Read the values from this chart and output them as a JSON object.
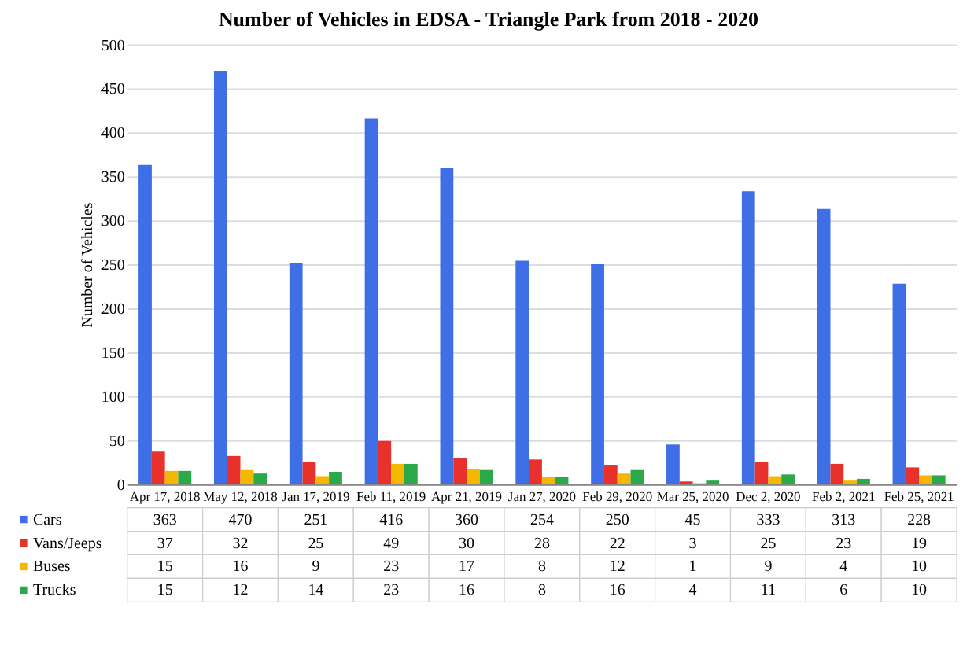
{
  "chart_data": {
    "type": "bar",
    "title": "Number of Vehicles in   EDSA - Triangle Park from 2018 - 2020",
    "ylabel": "Number of Vehicles",
    "categories": [
      "Apr 17, 2018",
      "May 12, 2018",
      "Jan 17, 2019",
      "Feb 11, 2019",
      "Apr 21, 2019",
      "Jan 27, 2020",
      "Feb 29, 2020",
      "Mar 25, 2020",
      "Dec 2, 2020",
      "Feb 2, 2021",
      "Feb 25, 2021"
    ],
    "series": [
      {
        "name": "Cars",
        "color": "#3f6fe6",
        "values": [
          363,
          470,
          251,
          416,
          360,
          254,
          250,
          45,
          333,
          313,
          228
        ]
      },
      {
        "name": "Vans/Jeeps",
        "color": "#e8312a",
        "values": [
          37,
          32,
          25,
          49,
          30,
          28,
          22,
          3,
          25,
          23,
          19
        ]
      },
      {
        "name": "Buses",
        "color": "#f5b800",
        "values": [
          15,
          16,
          9,
          23,
          17,
          8,
          12,
          1,
          9,
          4,
          10
        ]
      },
      {
        "name": "Trucks",
        "color": "#2aa84a",
        "values": [
          15,
          12,
          14,
          23,
          16,
          8,
          16,
          4,
          11,
          6,
          10
        ]
      }
    ],
    "ylim": [
      0,
      500
    ],
    "yticks": [
      0,
      50,
      100,
      150,
      200,
      250,
      300,
      350,
      400,
      450,
      500
    ],
    "grid": "y",
    "data_labels": true,
    "legend": "bottom"
  }
}
